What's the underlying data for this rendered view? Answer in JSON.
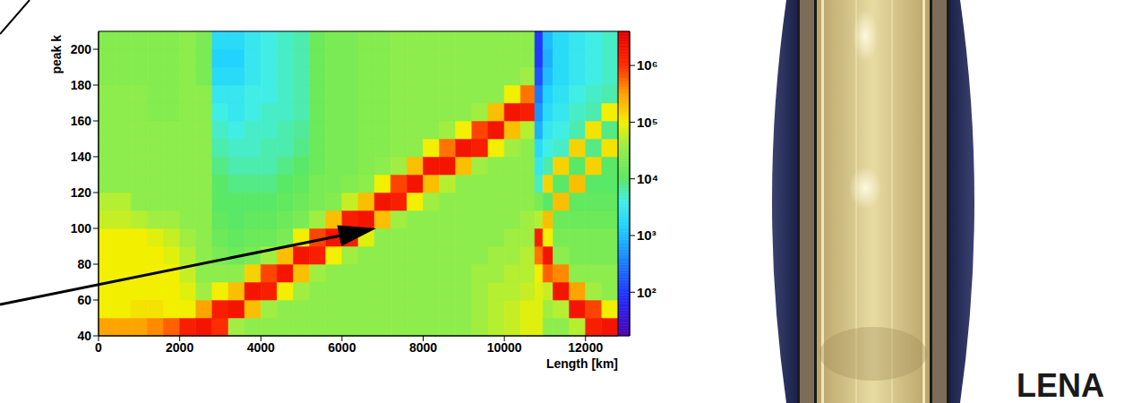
{
  "chart_data": {
    "type": "heatmap",
    "x_label": "Length [km]",
    "y_label": "peak k",
    "xlim": [
      0,
      12800
    ],
    "ylim": [
      40,
      210
    ],
    "xticks": [
      0,
      2000,
      4000,
      6000,
      8000,
      10000,
      12000
    ],
    "yticks": [
      40,
      60,
      80,
      100,
      120,
      140,
      160,
      180,
      200
    ],
    "x_bins": [
      0,
      400,
      800,
      1200,
      1600,
      2000,
      2400,
      2800,
      3200,
      3600,
      4000,
      4400,
      4800,
      5200,
      5600,
      6000,
      6400,
      6800,
      7200,
      7600,
      8000,
      8400,
      8800,
      9200,
      9600,
      10000,
      10400,
      10750,
      10950,
      11200,
      11600,
      12000,
      12400,
      12800
    ],
    "y_bins": [
      40,
      50,
      60,
      70,
      80,
      90,
      100,
      110,
      120,
      130,
      140,
      150,
      160,
      170,
      180,
      190,
      200,
      210
    ],
    "counts": [
      [
        300000.0,
        100000.0,
        100000.0,
        100000.0,
        100000.0,
        100000.0,
        60000.0,
        50000.0,
        30000.0,
        30000.0,
        30000.0,
        30000.0,
        30000.0,
        30000.0,
        25000.0,
        25000.0,
        25000.0
      ],
      [
        300000.0,
        100000.0,
        100000.0,
        100000.0,
        100000.0,
        100000.0,
        60000.0,
        50000.0,
        30000.0,
        30000.0,
        30000.0,
        30000.0,
        30000.0,
        30000.0,
        25000.0,
        25000.0,
        25000.0
      ],
      [
        300000.0,
        120000.0,
        100000.0,
        100000.0,
        100000.0,
        100000.0,
        50000.0,
        30000.0,
        30000.0,
        30000.0,
        30000.0,
        30000.0,
        30000.0,
        30000.0,
        25000.0,
        25000.0,
        25000.0
      ],
      [
        400000.0,
        120000.0,
        100000.0,
        100000.0,
        100000.0,
        80000.0,
        40000.0,
        30000.0,
        30000.0,
        30000.0,
        30000.0,
        30000.0,
        25000.0,
        25000.0,
        25000.0,
        25000.0,
        25000.0
      ],
      [
        600000.0,
        100000.0,
        100000.0,
        100000.0,
        80000.0,
        60000.0,
        40000.0,
        30000.0,
        30000.0,
        30000.0,
        30000.0,
        30000.0,
        25000.0,
        25000.0,
        25000.0,
        25000.0,
        25000.0
      ],
      [
        1500000.0,
        100000.0,
        80000.0,
        60000.0,
        50000.0,
        40000.0,
        30000.0,
        30000.0,
        30000.0,
        30000.0,
        30000.0,
        30000.0,
        30000.0,
        30000.0,
        30000.0,
        30000.0,
        30000.0
      ],
      [
        2000000.0,
        300000.0,
        40000.0,
        30000.0,
        30000.0,
        30000.0,
        30000.0,
        30000.0,
        30000.0,
        30000.0,
        30000.0,
        30000.0,
        30000.0,
        30000.0,
        20000.0,
        20000.0,
        20000.0
      ],
      [
        1000000.0,
        1500000.0,
        100000.0,
        30000.0,
        20000.0,
        15000.0,
        12000.0,
        10000.0,
        10000.0,
        8000.0,
        6000.0,
        5000.0,
        4000.0,
        3000.0,
        2000.0,
        1500.0,
        2000.0
      ],
      [
        40000.0,
        2000000.0,
        200000.0,
        30000.0,
        15000.0,
        12000.0,
        10000.0,
        10000.0,
        8000.0,
        6000.0,
        5000.0,
        4000.0,
        3000.0,
        3000.0,
        2000.0,
        1500.0,
        2000.0
      ],
      [
        30000.0,
        200000.0,
        2000000.0,
        150000.0,
        20000.0,
        15000.0,
        12000.0,
        10000.0,
        8000.0,
        6000.0,
        5000.0,
        5000.0,
        4000.0,
        4000.0,
        3000.0,
        3000.0,
        3000.0
      ],
      [
        30000.0,
        40000.0,
        1500000.0,
        800000.0,
        40000.0,
        15000.0,
        12000.0,
        10000.0,
        8000.0,
        6000.0,
        6000.0,
        5000.0,
        5000.0,
        4000.0,
        4000.0,
        4000.0,
        4000.0
      ],
      [
        30000.0,
        30000.0,
        100000.0,
        2000000.0,
        200000.0,
        20000.0,
        15000.0,
        12000.0,
        10000.0,
        8000.0,
        6000.0,
        6000.0,
        5000.0,
        5000.0,
        5000.0,
        5000.0,
        5000.0
      ],
      [
        30000.0,
        30000.0,
        40000.0,
        200000.0,
        2000000.0,
        100000.0,
        20000.0,
        15000.0,
        12000.0,
        10000.0,
        8000.0,
        7000.0,
        6000.0,
        6000.0,
        6000.0,
        6000.0,
        6000.0
      ],
      [
        30000.0,
        30000.0,
        30000.0,
        40000.0,
        1500000.0,
        800000.0,
        40000.0,
        20000.0,
        20000.0,
        15000.0,
        15000.0,
        15000.0,
        15000.0,
        15000.0,
        15000.0,
        15000.0,
        15000.0
      ],
      [
        30000.0,
        30000.0,
        30000.0,
        30000.0,
        100000.0,
        2000000.0,
        200000.0,
        25000.0,
        20000.0,
        20000.0,
        20000.0,
        20000.0,
        20000.0,
        20000.0,
        20000.0,
        20000.0,
        20000.0
      ],
      [
        30000.0,
        30000.0,
        30000.0,
        30000.0,
        40000.0,
        1500000.0,
        1500000.0,
        60000.0,
        25000.0,
        20000.0,
        20000.0,
        20000.0,
        20000.0,
        20000.0,
        20000.0,
        20000.0,
        20000.0
      ],
      [
        30000.0,
        30000.0,
        30000.0,
        30000.0,
        30000.0,
        80000.0,
        2000000.0,
        200000.0,
        30000.0,
        25000.0,
        25000.0,
        25000.0,
        25000.0,
        25000.0,
        25000.0,
        25000.0,
        25000.0
      ],
      [
        30000.0,
        30000.0,
        30000.0,
        30000.0,
        30000.0,
        30000.0,
        200000.0,
        2000000.0,
        100000.0,
        30000.0,
        25000.0,
        25000.0,
        25000.0,
        25000.0,
        25000.0,
        25000.0,
        25000.0
      ],
      [
        30000.0,
        30000.0,
        30000.0,
        30000.0,
        30000.0,
        30000.0,
        40000.0,
        1500000.0,
        800000.0,
        40000.0,
        30000.0,
        30000.0,
        30000.0,
        30000.0,
        30000.0,
        30000.0,
        30000.0
      ],
      [
        30000.0,
        30000.0,
        30000.0,
        30000.0,
        30000.0,
        30000.0,
        30000.0,
        100000.0,
        2000000.0,
        200000.0,
        30000.0,
        30000.0,
        30000.0,
        30000.0,
        30000.0,
        30000.0,
        30000.0
      ],
      [
        30000.0,
        30000.0,
        30000.0,
        30000.0,
        30000.0,
        30000.0,
        30000.0,
        40000.0,
        200000.0,
        2000000.0,
        100000.0,
        30000.0,
        30000.0,
        30000.0,
        30000.0,
        30000.0,
        30000.0
      ],
      [
        30000.0,
        30000.0,
        30000.0,
        30000.0,
        30000.0,
        30000.0,
        30000.0,
        30000.0,
        50000.0,
        2000000.0,
        500000.0,
        40000.0,
        30000.0,
        30000.0,
        30000.0,
        30000.0,
        30000.0
      ],
      [
        30000.0,
        30000.0,
        30000.0,
        30000.0,
        30000.0,
        30000.0,
        30000.0,
        30000.0,
        30000.0,
        200000.0,
        2000000.0,
        100000.0,
        30000.0,
        30000.0,
        30000.0,
        30000.0,
        30000.0
      ],
      [
        40000.0,
        40000.0,
        40000.0,
        40000.0,
        30000.0,
        30000.0,
        30000.0,
        30000.0,
        30000.0,
        40000.0,
        1500000.0,
        800000.0,
        40000.0,
        30000.0,
        30000.0,
        30000.0,
        30000.0
      ],
      [
        50000.0,
        50000.0,
        50000.0,
        40000.0,
        40000.0,
        30000.0,
        30000.0,
        30000.0,
        30000.0,
        30000.0,
        100000.0,
        2000000.0,
        200000.0,
        30000.0,
        30000.0,
        30000.0,
        30000.0
      ],
      [
        60000.0,
        60000.0,
        50000.0,
        50000.0,
        40000.0,
        40000.0,
        30000.0,
        30000.0,
        30000.0,
        30000.0,
        40000.0,
        200000.0,
        2000000.0,
        100000.0,
        30000.0,
        30000.0,
        30000.0
      ],
      [
        80000.0,
        80000.0,
        60000.0,
        50000.0,
        50000.0,
        40000.0,
        40000.0,
        30000.0,
        30000.0,
        30000.0,
        30000.0,
        50000.0,
        1500000.0,
        500000.0,
        40000.0,
        30000.0,
        30000.0
      ],
      [
        80000.0,
        80000.0,
        80000.0,
        100000.0,
        500000.0,
        1500000.0,
        50000.0,
        20000.0,
        5000.0,
        3000.0,
        2000.0,
        800.0,
        500.0,
        300.0,
        150.0,
        100.0,
        100.0
      ],
      [
        30000.0,
        40000.0,
        60000.0,
        600000.0,
        2000000.0,
        100000.0,
        200000.0,
        10000.0,
        150000.0,
        6000.0,
        4000.0,
        3000.0,
        2000.0,
        1500.0,
        1000.0,
        800.0,
        1000.0
      ],
      [
        30000.0,
        50000.0,
        2000000.0,
        400000.0,
        30000.0,
        20000.0,
        15000.0,
        200000.0,
        10000.0,
        150000.0,
        5000.0,
        4000.0,
        3000.0,
        2500.0,
        2000.0,
        2000.0,
        2000.0
      ],
      [
        50000.0,
        2000000.0,
        300000.0,
        30000.0,
        20000.0,
        20000.0,
        15000.0,
        12000.0,
        200000.0,
        10000.0,
        150000.0,
        6000.0,
        5000.0,
        4000.0,
        3000.0,
        3000.0,
        3000.0
      ],
      [
        1500000.0,
        800000.0,
        40000.0,
        30000.0,
        20000.0,
        20000.0,
        15000.0,
        12000.0,
        10000.0,
        150000.0,
        8000.0,
        120000.0,
        6000.0,
        5000.0,
        4000.0,
        4000.0,
        4000.0
      ],
      [
        2000000.0,
        100000.0,
        30000.0,
        30000.0,
        20000.0,
        20000.0,
        15000.0,
        12000.0,
        10000.0,
        10000.0,
        120000.0,
        8000.0,
        100000.0,
        6000.0,
        5000.0,
        5000.0,
        5000.0
      ]
    ],
    "colorbar_lim": [
      17,
      4000000
    ],
    "colorbar_ticks": [
      {
        "value": 100,
        "label": "10²"
      },
      {
        "value": 1000,
        "label": "10³"
      },
      {
        "value": 10000,
        "label": "10⁴"
      },
      {
        "value": 100000,
        "label": "10⁵"
      },
      {
        "value": 1000000,
        "label": "10⁶"
      }
    ],
    "annotations": [
      "LENA"
    ]
  }
}
